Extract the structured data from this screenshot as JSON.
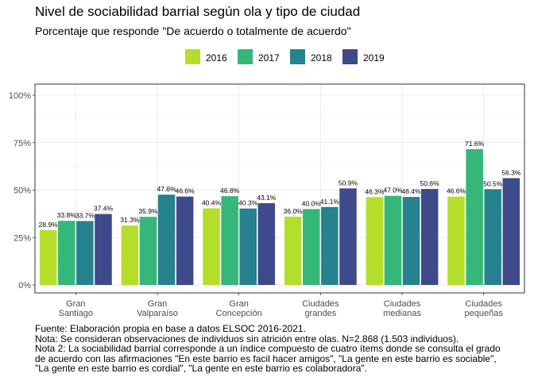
{
  "header": {
    "title": "Nivel de sociabilidad barrial según ola y tipo de ciudad",
    "subtitle": "Porcentaje que responde \"De acuerdo o totalmente de acuerdo\""
  },
  "chart_data": {
    "type": "bar",
    "categories": [
      [
        "Gran",
        "Santiago"
      ],
      [
        "Gran",
        "Valparaíso"
      ],
      [
        "Gran",
        "Concepción"
      ],
      [
        "Ciudades",
        "grandes"
      ],
      [
        "Ciudades",
        "medianas"
      ],
      [
        "Ciudades",
        "pequeñas"
      ]
    ],
    "series": [
      {
        "name": "2016",
        "color": "#b5de2b",
        "values": [
          28.9,
          31.3,
          40.4,
          36.0,
          46.3,
          46.6
        ]
      },
      {
        "name": "2017",
        "color": "#35b779",
        "values": [
          33.8,
          35.9,
          46.8,
          40.0,
          47.0,
          71.6
        ]
      },
      {
        "name": "2018",
        "color": "#26828e",
        "values": [
          33.7,
          47.6,
          40.3,
          41.1,
          46.4,
          50.5
        ]
      },
      {
        "name": "2019",
        "color": "#3e4a89",
        "values": [
          37.4,
          46.6,
          43.1,
          50.9,
          50.6,
          56.3
        ]
      }
    ],
    "ylim": [
      0,
      100
    ],
    "yticks": [
      0,
      25,
      50,
      75,
      100
    ],
    "ytick_labels": [
      "0%",
      "25%",
      "50%",
      "75%",
      "100%"
    ],
    "legend_position": "top",
    "grid": true
  },
  "notes": [
    "Fuente: Elaboración propia en base a datos ELSOC 2016-2021.",
    "Nota: Se consideran observaciones de individuos sin atrición entre olas. N=2.868 (1.503 individuos).",
    "Nota 2: La sociabilidad barrial corresponde a un índice compuesto de cuatro ítems donde se consulta el grado",
    "de acuerdo con las afirmaciones \"En este barrio es facil hacer amigos\", \"La gente en este barrio es sociable\",",
    "\"La gente en este barrio es cordial\", \"La gente en este barrio es colaboradora\"."
  ]
}
